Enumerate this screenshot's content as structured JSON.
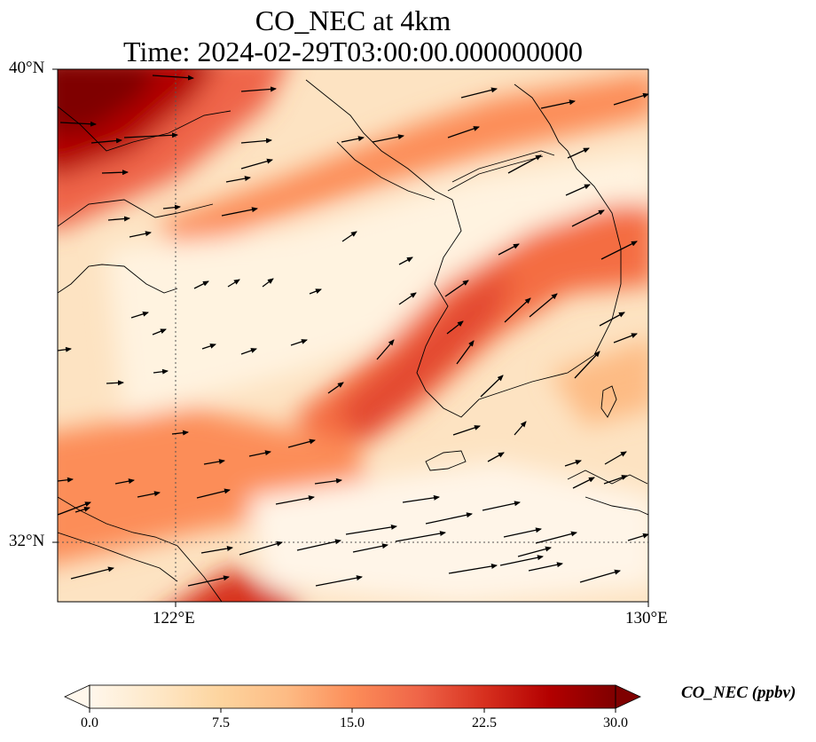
{
  "title": {
    "line1": "CO_NEC at 4km",
    "line2": "Time: 2024-02-29T03:00:00.000000000"
  },
  "axes": {
    "lat_labels": [
      "40°N",
      "32°N"
    ],
    "lon_labels": [
      "122°E",
      "130°E"
    ]
  },
  "colorbar": {
    "label": "CO_NEC (ppbv)",
    "ticks": [
      "0.0",
      "7.5",
      "15.0",
      "22.5",
      "30.0"
    ],
    "range": [
      0,
      30
    ],
    "extend": "both",
    "colormap": "OrRd",
    "colors": [
      "#fff7ec",
      "#fee8c8",
      "#fdd49e",
      "#fdbb84",
      "#fc8d59",
      "#ef6548",
      "#d7301f",
      "#b30000",
      "#7f0000"
    ]
  },
  "chart_data": {
    "type": "heatmap",
    "variable": "CO_NEC",
    "units": "ppbv",
    "lon_range": [
      120,
      130
    ],
    "lat_range": [
      31,
      40
    ],
    "gridlines": {
      "lons": [
        122
      ],
      "lats": [
        32
      ]
    },
    "vectors": "wind"
  }
}
